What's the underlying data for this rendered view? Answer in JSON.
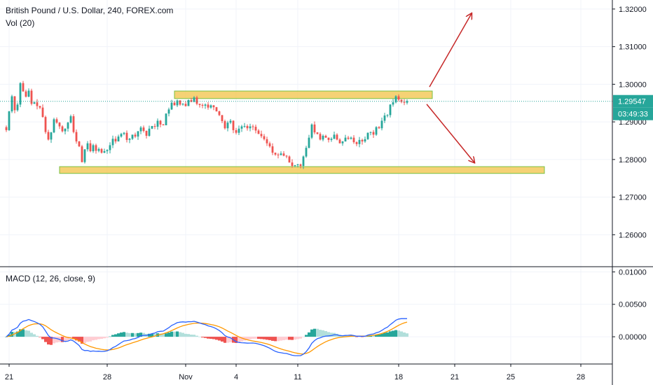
{
  "chart_data": [
    {
      "type": "candlestick",
      "title": "British Pound / U.S. Dollar, 240, FOREX.com",
      "volume_label": "Vol (20)",
      "price_axis_ticks": [
        "1.32000",
        "1.31000",
        "1.30000",
        "1.29000",
        "1.28000",
        "1.27000",
        "1.26000"
      ],
      "price_axis_values": [
        1.32,
        1.31,
        1.3,
        1.29,
        1.28,
        1.27,
        1.26
      ],
      "ylim": [
        1.2515,
        1.3224
      ],
      "current_price_label": "1.29547",
      "current_price": 1.29547,
      "countdown_label": "03:49:33",
      "x_ticks": [
        "21",
        "28",
        "Nov",
        "4",
        "11",
        "18",
        "21",
        "25",
        "28"
      ],
      "x_tick_index": [
        1,
        36,
        64,
        82,
        104,
        140,
        160,
        180,
        205
      ],
      "colors": {
        "up": "#26a69a",
        "down": "#ef5350",
        "zone_fill": "#f3c753",
        "zone_border": "#7ac143",
        "arrow": "#c62828",
        "price_badge": "#26a69a"
      },
      "zones": [
        {
          "name": "resistance-zone",
          "from_index": 60,
          "to_index": 152,
          "low": 1.2962,
          "high": 1.2982
        },
        {
          "name": "support-zone",
          "from_index": 19,
          "to_index": 192,
          "low": 1.2763,
          "high": 1.2781
        }
      ],
      "arrows": [
        {
          "name": "bullish-arrow",
          "from": {
            "index": 151,
            "price": 1.2993
          },
          "to": {
            "index": 166,
            "price": 1.3188
          }
        },
        {
          "name": "bearish-arrow",
          "from": {
            "index": 150,
            "price": 1.2947
          },
          "to": {
            "index": 167,
            "price": 1.2792
          }
        }
      ],
      "closes": [
        1.2878,
        1.2928,
        1.2968,
        1.2931,
        1.2946,
        1.3003,
        1.2981,
        1.2967,
        1.2983,
        1.2948,
        1.2952,
        1.2942,
        1.2938,
        1.2913,
        1.2873,
        1.2853,
        1.2872,
        1.2907,
        1.2898,
        1.2888,
        1.2875,
        1.2882,
        1.2898,
        1.2915,
        1.2873,
        1.2848,
        1.2835,
        1.2793,
        1.2827,
        1.2843,
        1.2822,
        1.2838,
        1.2823,
        1.2828,
        1.2818,
        1.2822,
        1.2825,
        1.2838,
        1.2855,
        1.2848,
        1.2861,
        1.2868,
        1.2871,
        1.2852,
        1.2855,
        1.2866,
        1.2861,
        1.2875,
        1.2885,
        1.2876,
        1.2863,
        1.2882,
        1.2889,
        1.2887,
        1.2903,
        1.2893,
        1.2891,
        1.2922,
        1.2933,
        1.2951,
        1.2944,
        1.2957,
        1.2946,
        1.2948,
        1.2942,
        1.2958,
        1.2953,
        1.2965,
        1.2948,
        1.2945,
        1.2943,
        1.2946,
        1.2938,
        1.2944,
        1.2939,
        1.2928,
        1.2918,
        1.2902,
        1.2883,
        1.2898,
        1.2903,
        1.2878,
        1.2871,
        1.2882,
        1.2888,
        1.2889,
        1.2883,
        1.2888,
        1.2887,
        1.2877,
        1.2868,
        1.2862,
        1.2854,
        1.2843,
        1.2835,
        1.2818,
        1.2813,
        1.2812,
        1.2816,
        1.281,
        1.2808,
        1.2792,
        1.2783,
        1.2785,
        1.2787,
        1.2783,
        1.2808,
        1.2831,
        1.2858,
        1.2893,
        1.2872,
        1.2868,
        1.2853,
        1.2863,
        1.2858,
        1.2852,
        1.2855,
        1.2866,
        1.2853,
        1.2843,
        1.2848,
        1.2858,
        1.2855,
        1.2858,
        1.2846,
        1.2841,
        1.2852,
        1.2848,
        1.2854,
        1.2871,
        1.2873,
        1.2866,
        1.2886,
        1.2883,
        1.2903,
        1.2917,
        1.2918,
        1.2946,
        1.2952,
        1.2968,
        1.2959,
        1.2953,
        1.2951,
        1.2955
      ],
      "macd_label": "MACD (12, 26, close, 9)",
      "macd_axis_ticks": [
        "0.01000",
        "0.00500",
        "0.00000"
      ],
      "macd_axis_values": [
        0.01,
        0.005,
        0.0
      ],
      "macd_ylim": [
        -0.0042,
        0.0108
      ],
      "macd_colors": {
        "macd": "#2962ff",
        "signal": "#ff9800",
        "hist_pos_strong": "#26a69a",
        "hist_pos_weak": "#b2dfdb",
        "hist_neg_strong": "#ef5350",
        "hist_neg_weak": "#ffcdd2"
      }
    }
  ]
}
